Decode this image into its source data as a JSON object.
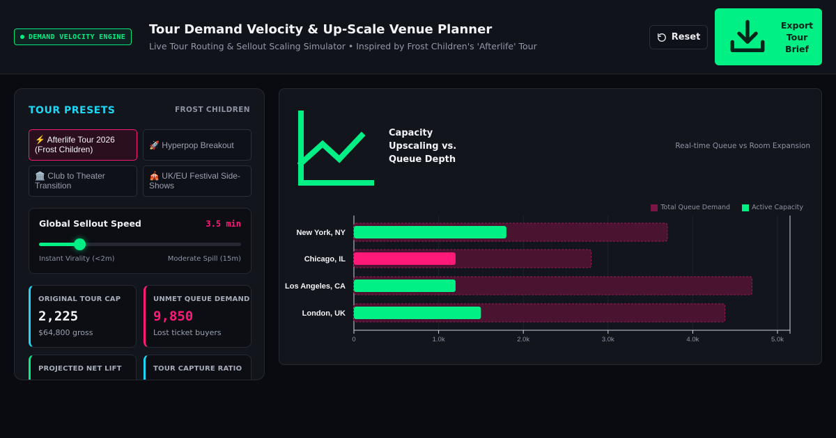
{
  "header": {
    "badge": "DEMAND VELOCITY ENGINE",
    "title": "Tour Demand Velocity & Up-Scale Venue Planner",
    "subtitle": "Live Tour Routing & Sellout Scaling Simulator • Inspired by Frost Children's 'Afterlife' Tour",
    "reset_label": "Reset",
    "export_label": "Export Tour Brief"
  },
  "presets": {
    "title": "TOUR PRESETS",
    "artist": "FROST CHILDREN",
    "items": [
      {
        "label": "⚡ Afterlife Tour 2026 (Frost Children)",
        "active": true
      },
      {
        "label": "🚀 Hyperpop Breakout",
        "active": false
      },
      {
        "label": "🏛️ Club to Theater Transition",
        "active": false
      },
      {
        "label": "🎪 UK/EU Festival Side-Shows",
        "active": false
      }
    ]
  },
  "speed": {
    "title": "Global Sellout Speed",
    "value": "3.5 min",
    "level": 0.2,
    "min_label": "Instant Virality (<2m)",
    "max_label": "Moderate Spill (15m)"
  },
  "stats": [
    {
      "label": "ORIGINAL TOUR CAP",
      "value": "2,225",
      "sub": "$64,800 gross"
    },
    {
      "label": "UNMET QUEUE DEMAND",
      "value": "9,850",
      "sub": "Lost ticket buyers"
    },
    {
      "label": "PROJECTED NET LIFT",
      "value": "",
      "sub": ""
    },
    {
      "label": "TOUR CAPTURE RATIO",
      "value": "",
      "sub": ""
    }
  ],
  "chart_panel": {
    "title": "Capacity Upscaling vs. Queue Depth",
    "caption": "Real-time Queue vs Room Expansion"
  },
  "colors": {
    "accent_green": "#00f085",
    "accent_pink": "#ff1a7a",
    "accent_cyan": "#1ed6f5",
    "queue_fill": "#4a1330"
  },
  "chart_data": {
    "type": "bar",
    "orientation": "horizontal",
    "categories": [
      "New York, NY",
      "Chicago, IL",
      "Los Angeles, CA",
      "London, UK"
    ],
    "series": [
      {
        "name": "Total Queue Demand",
        "values": [
          3700,
          2800,
          4700,
          4380
        ]
      },
      {
        "name": "Active Capacity",
        "values": [
          1800,
          1200,
          1200,
          1500
        ]
      }
    ],
    "highlight_category": "Chicago, IL",
    "x_ticks": [
      "0",
      "1.0k",
      "2.0k",
      "3.0k",
      "4.0k",
      "5.0k"
    ],
    "xlim": [
      0,
      5000
    ],
    "legend_position": "top-right",
    "grid": true
  }
}
